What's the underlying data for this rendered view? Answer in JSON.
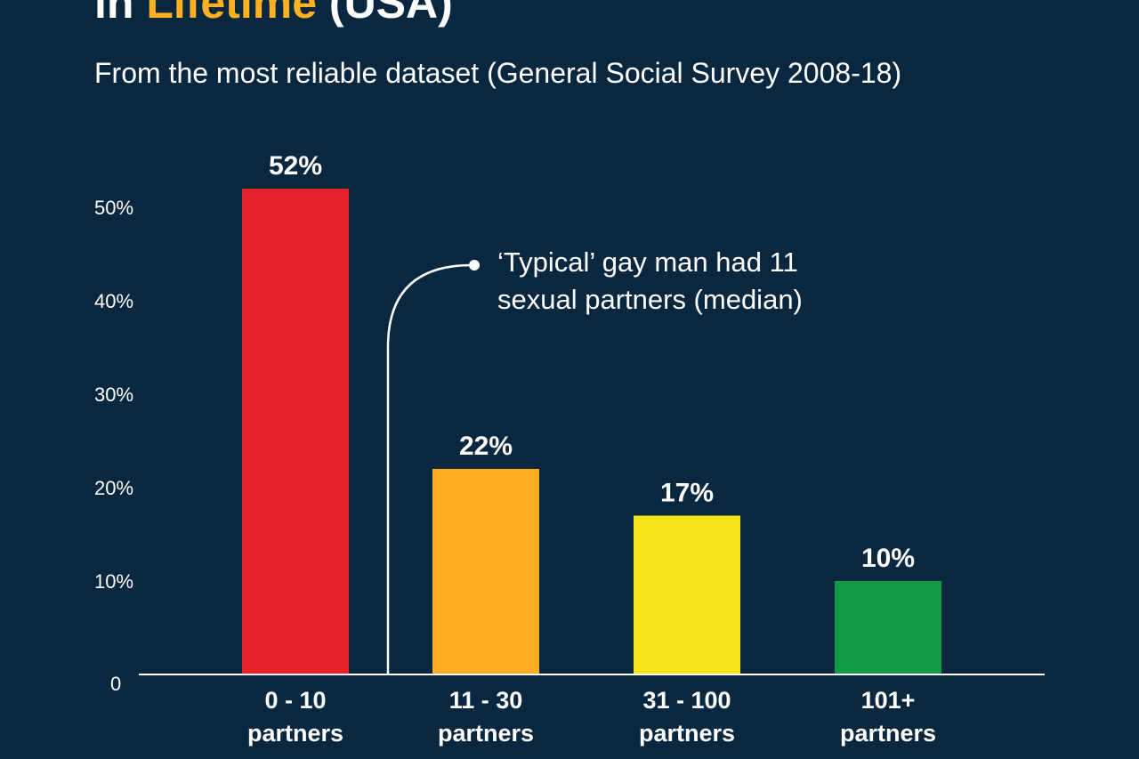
{
  "header": {
    "title_prefix": "in ",
    "title_highlight": "Lifetime",
    "title_suffix": " (USA)",
    "subtitle": "From the most reliable dataset (General Social Survey 2008-18)"
  },
  "annotation": {
    "line1": "‘Typical’ gay man had 11",
    "line2": "sexual partners (median)"
  },
  "chart_data": {
    "type": "bar",
    "title": "in Lifetime (USA)",
    "subtitle": "From the most reliable dataset (General Social Survey 2008-18)",
    "categories": [
      {
        "line1": "0 - 10",
        "line2": "partners"
      },
      {
        "line1": "11 - 30",
        "line2": "partners"
      },
      {
        "line1": "31 - 100",
        "line2": "partners"
      },
      {
        "line1": "101+",
        "line2": "partners"
      }
    ],
    "values": [
      52,
      22,
      17,
      10
    ],
    "value_labels": [
      "52%",
      "22%",
      "17%",
      "10%"
    ],
    "colors": [
      "#e8222a",
      "#fdae22",
      "#f5e419",
      "#129a48"
    ],
    "yticks": [
      0,
      10,
      20,
      30,
      40,
      50
    ],
    "ytick_labels": [
      "0",
      "10%",
      "20%",
      "30%",
      "40%",
      "50%"
    ],
    "ylim": [
      0,
      52
    ],
    "grid": false,
    "xlabel": "",
    "ylabel": ""
  }
}
